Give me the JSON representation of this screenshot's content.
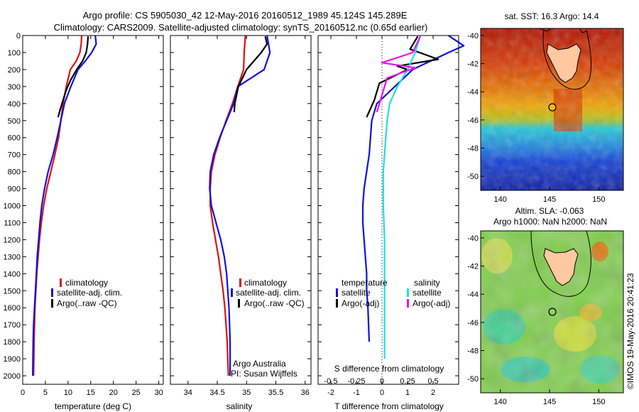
{
  "header": {
    "line1": "Argo profile: CS 5905030_42 12-May-2016 20160512_1989 45.124S 145.289E",
    "line2": "Climatology: CARS2009. Satellite-adjusted climatology: synTS_20160512.nc (0.65d earlier)"
  },
  "colors": {
    "climatology": "#dd1111",
    "satellite": "#1111dd",
    "argo": "#000000",
    "sal_satellite": "#22dddd",
    "sal_argo": "#ee11ee"
  },
  "chart_data": [
    {
      "type": "line",
      "xlabel": "temperature (deg C)",
      "xlim": [
        0,
        31
      ],
      "ylim": [
        0,
        2050
      ],
      "xticks": [
        0,
        5,
        10,
        15,
        20,
        25,
        30
      ],
      "yticks": [
        0,
        100,
        200,
        300,
        400,
        500,
        600,
        700,
        800,
        900,
        1000,
        1100,
        1200,
        1300,
        1400,
        1500,
        1600,
        1700,
        1800,
        1900,
        2000
      ],
      "legend": [
        "climatology",
        "satellite-adj. clim.",
        "Argo(..raw -QC)"
      ],
      "series": [
        {
          "name": "climatology",
          "color": "#dd1111",
          "x": [
            13.0,
            12.9,
            12.6,
            11.8,
            10.5,
            9.6,
            8.9,
            8.4,
            7.9,
            7.1,
            6.2,
            5.3,
            4.6,
            4.1,
            3.7,
            3.4,
            3.1,
            2.9,
            2.7,
            2.6,
            2.5,
            2.4
          ],
          "y": [
            0,
            50,
            100,
            150,
            200,
            300,
            400,
            500,
            600,
            700,
            800,
            900,
            1000,
            1100,
            1200,
            1300,
            1400,
            1500,
            1600,
            1700,
            1800,
            2000
          ]
        },
        {
          "name": "satellite-adj. clim.",
          "color": "#1111dd",
          "x": [
            16.0,
            16.2,
            15.2,
            13.8,
            12.2,
            10.6,
            9.2,
            8.4,
            7.6,
            6.7,
            5.6,
            4.8,
            4.2,
            3.8,
            3.5,
            3.2,
            3.0,
            2.8,
            2.6,
            2.4,
            2.3,
            2.2
          ],
          "y": [
            0,
            50,
            100,
            150,
            200,
            300,
            400,
            500,
            600,
            700,
            800,
            900,
            1000,
            1100,
            1200,
            1300,
            1400,
            1500,
            1600,
            1700,
            1800,
            2000
          ]
        },
        {
          "name": "Argo(..raw -QC)",
          "color": "#000000",
          "x": [
            14.4,
            14.3,
            14.0,
            13.2,
            11.9,
            10.6,
            9.6,
            8.9,
            8.2,
            7.8
          ],
          "y": [
            5,
            50,
            100,
            150,
            200,
            260,
            320,
            380,
            440,
            480
          ]
        }
      ]
    },
    {
      "type": "line",
      "xlabel": "salinity",
      "xlim": [
        33.7,
        36.1
      ],
      "ylim": [
        0,
        2050
      ],
      "xticks": [
        34,
        34.5,
        35,
        35.5,
        36
      ],
      "legend": [
        "climatology",
        "satellite-adj. clim.",
        "Argo(..raw -QC)"
      ],
      "annotations": [
        "Argo Australia",
        "PI: Susan Wijffels"
      ],
      "series": [
        {
          "name": "climatology",
          "color": "#dd1111",
          "x": [
            34.98,
            34.96,
            34.95,
            34.85,
            34.76,
            34.65,
            34.55,
            34.46,
            34.4,
            34.38,
            34.38,
            34.42,
            34.47,
            34.52,
            34.56,
            34.6,
            34.63,
            34.65,
            34.67,
            34.68,
            34.69
          ],
          "y": [
            0,
            100,
            200,
            300,
            400,
            500,
            600,
            700,
            800,
            900,
            1000,
            1100,
            1200,
            1300,
            1400,
            1500,
            1600,
            1700,
            1800,
            1900,
            2000
          ]
        },
        {
          "name": "satellite-adj. clim.",
          "color": "#1111dd",
          "x": [
            35.35,
            35.4,
            35.3,
            34.85,
            34.78,
            34.66,
            34.54,
            34.44,
            34.38,
            34.37,
            34.4,
            34.48,
            34.56,
            34.62,
            34.66,
            34.68,
            34.7,
            34.71,
            34.72,
            34.72,
            34.72
          ],
          "y": [
            0,
            100,
            200,
            300,
            400,
            500,
            600,
            700,
            800,
            900,
            1000,
            1100,
            1200,
            1300,
            1400,
            1500,
            1600,
            1700,
            1800,
            1900,
            2000
          ]
        },
        {
          "name": "Argo(..raw -QC)",
          "color": "#000000",
          "x": [
            35.32,
            35.35,
            35.25,
            35.0,
            34.86,
            34.8,
            34.79
          ],
          "y": [
            5,
            50,
            100,
            200,
            300,
            400,
            450
          ]
        }
      ]
    },
    {
      "type": "line",
      "xlabel": "T difference from climatology",
      "xlabel2": "S difference from climatology",
      "xlim": [
        -2.5,
        3.0
      ],
      "ylim": [
        0,
        2050
      ],
      "xticks": [
        -2,
        -1,
        0,
        1,
        2
      ],
      "xticks2": [
        -0.5,
        -0.25,
        0,
        0.25,
        0.5
      ],
      "legend_temperature": [
        "temperature",
        "satellite",
        "Argo(-adj)"
      ],
      "legend_salinity": [
        "salinity",
        "satellite",
        "Argo(-adj)"
      ],
      "series": [
        {
          "name": "temperature satellite",
          "color": "#1111dd",
          "x": [
            2.6,
            3.2,
            2.6,
            1.9,
            1.2,
            0.5,
            -0.2,
            -0.4,
            -0.45,
            -0.5,
            -0.6,
            -0.7,
            -0.75,
            -0.75,
            -0.7,
            -0.65,
            -0.6,
            -0.6,
            -0.55,
            -0.5
          ],
          "y": [
            0,
            60,
            100,
            150,
            200,
            300,
            400,
            500,
            600,
            700,
            800,
            900,
            1000,
            1100,
            1200,
            1300,
            1400,
            1500,
            1600,
            1800
          ]
        },
        {
          "name": "temperature Argo(-adj)",
          "color": "#000000",
          "x": [
            1.4,
            1.1,
            2.2,
            0.6,
            1.0,
            -0.1,
            -0.3,
            -0.6
          ],
          "y": [
            5,
            80,
            140,
            180,
            200,
            280,
            380,
            480
          ]
        },
        {
          "name": "salinity satellite",
          "color": "#22dddd",
          "x": [
            1.5,
            1.3,
            1.0,
            0.6,
            0.3,
            0.2,
            0.15,
            0.1,
            0.05,
            0.05,
            0.05,
            0.1,
            0.1,
            0.1,
            0.1
          ],
          "y": [
            0,
            100,
            200,
            300,
            400,
            500,
            600,
            700,
            800,
            900,
            1000,
            1200,
            1400,
            1600,
            1900
          ]
        },
        {
          "name": "salinity Argo(-adj)",
          "color": "#ee11ee",
          "x": [
            1.5,
            1.2,
            0.0,
            1.3,
            0.2,
            0.0,
            -0.2
          ],
          "y": [
            5,
            100,
            160,
            190,
            250,
            350,
            450
          ]
        }
      ]
    },
    {
      "type": "heatmap",
      "title": "sat. SST: 16.3 Argo: 14.4",
      "xlim": [
        138,
        152.5
      ],
      "ylim": [
        -51,
        -39.5
      ],
      "xticks": [
        140,
        145,
        150
      ],
      "yticks": [
        -40,
        -42,
        -44,
        -46,
        -48,
        -50
      ],
      "marker": {
        "lon": 145.289,
        "lat": -45.124
      }
    },
    {
      "type": "heatmap",
      "title": "Altim. SLA: -0.063",
      "subtitle": "Argo h1000: NaN h2000: NaN",
      "xlim": [
        138,
        152.5
      ],
      "ylim": [
        -51,
        -39.5
      ],
      "xticks": [
        140,
        145,
        150
      ],
      "yticks": [
        -40,
        -42,
        -44,
        -46,
        -48,
        -50
      ],
      "marker": {
        "lon": 145.289,
        "lat": -45.124
      }
    }
  ],
  "stamp": "©IMOS 19-May-2016 20:41:23"
}
